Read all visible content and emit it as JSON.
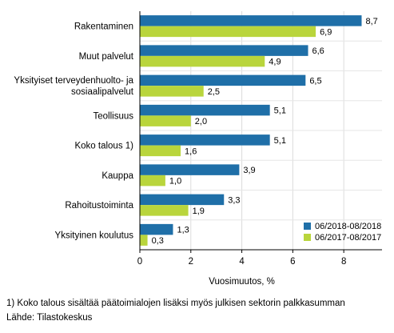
{
  "chart_data": {
    "type": "bar",
    "orientation": "horizontal",
    "categories": [
      [
        "Rakentaminen"
      ],
      [
        "Muut palvelut"
      ],
      [
        "Yksityiset terveydenhuolto- ja",
        "sosiaalipalvelut"
      ],
      [
        "Teollisuus"
      ],
      [
        "Koko talous 1)"
      ],
      [
        "Kauppa"
      ],
      [
        "Rahoitustoiminta"
      ],
      [
        "Yksityinen koulutus"
      ]
    ],
    "series": [
      {
        "name": "06/2018-08/2018",
        "color": "#1f6fa8",
        "values": [
          8.7,
          6.6,
          6.5,
          5.1,
          5.1,
          3.9,
          3.3,
          1.3
        ],
        "labels": [
          "8,7",
          "6,6",
          "6,5",
          "5,1",
          "5,1",
          "3,9",
          "3,3",
          "1,3"
        ]
      },
      {
        "name": "06/2017-08/2017",
        "color": "#b9d53c",
        "values": [
          6.9,
          4.9,
          2.5,
          2.0,
          1.6,
          1.0,
          1.9,
          0.3
        ],
        "labels": [
          "6,9",
          "4,9",
          "2,5",
          "2,0",
          "1,6",
          "1,0",
          "1,9",
          "0,3"
        ]
      }
    ],
    "xlabel": "Vuosimuutos, %",
    "xlim": [
      0,
      9.5
    ],
    "xticks": [
      0,
      2,
      4,
      6,
      8
    ],
    "grid": true,
    "legend": "bottom-right"
  },
  "footnote": "1) Koko talous sisältää päätoimialojen lisäksi myös julkisen sektorin palkkasumman",
  "source": "Lähde: Tilastokeskus"
}
